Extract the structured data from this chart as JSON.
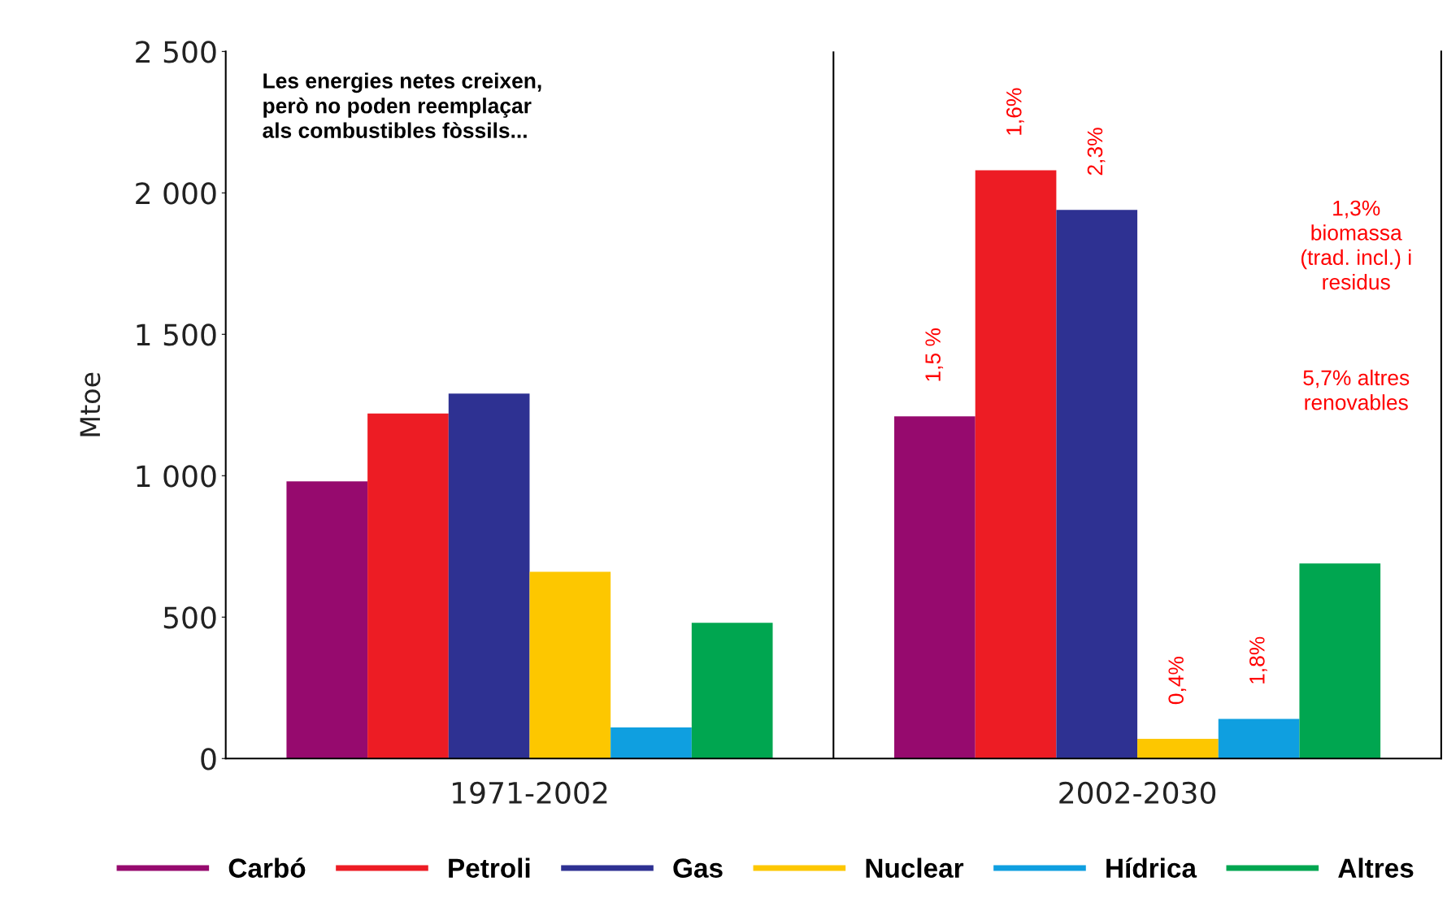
{
  "chart_data": {
    "type": "bar",
    "categories": [
      "1971-2002",
      "2002-2030"
    ],
    "ylabel": "Mtoe",
    "ylim": [
      0,
      2500
    ],
    "yticks": [
      0,
      500,
      {
        "value": 1000,
        "label": "1 000"
      },
      {
        "value": 1500,
        "label": "1 500"
      },
      {
        "value": 2000,
        "label": "2 000"
      },
      {
        "value": 2500,
        "label": "2 500"
      }
    ],
    "legend": "bottom",
    "annotations": [
      "Les energies netes creixen,\nperò no poden reemplaçar\nals combustibles fòssils...",
      "1,5 %",
      "1,6%",
      "2,3%",
      "0,4%",
      "1,8%",
      "1,3%\nbiomassa\n(trad. incl.) i\nresidus",
      "5,7% altres\nrenovables"
    ],
    "series": [
      {
        "name": "Carbó",
        "color": "#960a6e",
        "values": [
          980,
          1210
        ]
      },
      {
        "name": "Petroli",
        "color": "#ed1c24",
        "values": [
          1220,
          2080
        ]
      },
      {
        "name": "Gas",
        "color": "#2e3192",
        "values": [
          1290,
          1940
        ]
      },
      {
        "name": "Nuclear",
        "color": "#fdc700",
        "values": [
          660,
          70
        ]
      },
      {
        "name": "Hídrica",
        "color": "#0f9fe0",
        "values": [
          110,
          140
        ]
      },
      {
        "name": "Altres",
        "color": "#00a650",
        "values": [
          480,
          690
        ]
      }
    ]
  }
}
